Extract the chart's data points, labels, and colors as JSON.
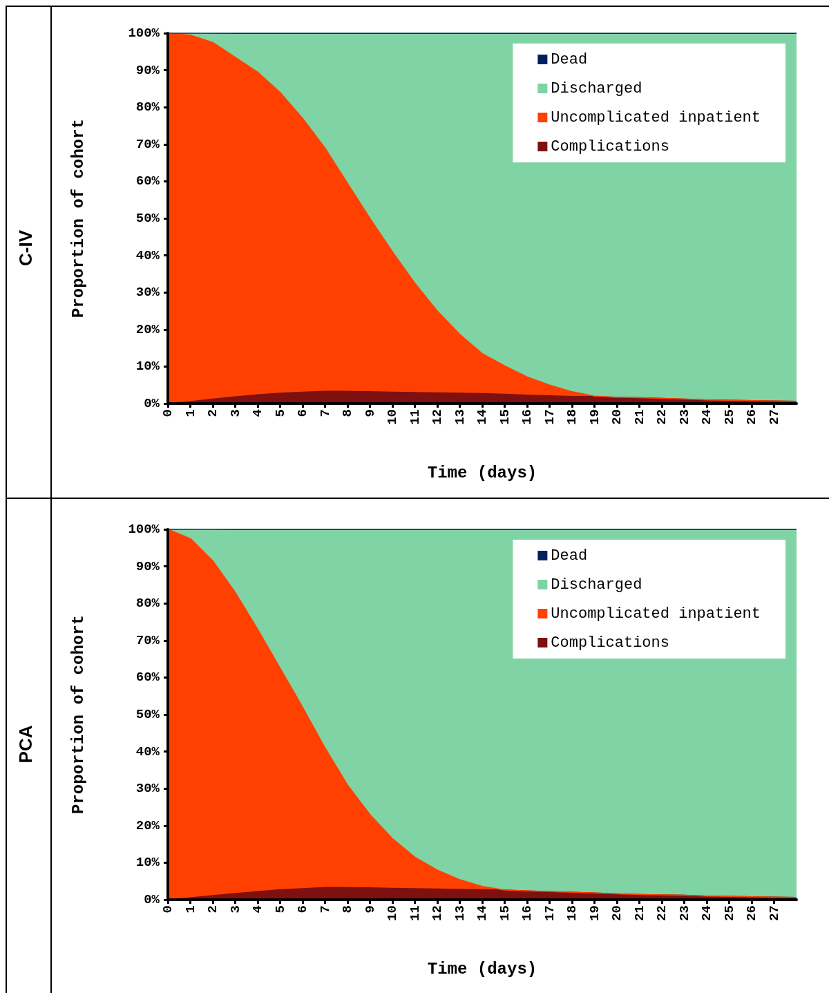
{
  "chart_data": [
    {
      "type": "area",
      "title": "C-IV",
      "xlabel": "Time (days)",
      "ylabel": "Proportion of cohort",
      "stacked": true,
      "legend": "top right",
      "grid": false,
      "x": [
        0,
        1,
        2,
        3,
        4,
        5,
        6,
        7,
        8,
        9,
        10,
        11,
        12,
        13,
        14,
        15,
        16,
        17,
        18,
        19,
        20,
        21,
        22,
        23,
        24,
        25,
        26,
        27,
        28
      ],
      "xlim": [
        0,
        28
      ],
      "xticks": [
        0,
        1,
        2,
        3,
        4,
        5,
        6,
        7,
        8,
        9,
        10,
        11,
        12,
        13,
        14,
        15,
        16,
        17,
        18,
        19,
        20,
        21,
        22,
        23,
        24,
        25,
        26,
        27
      ],
      "ylim": [
        0,
        100
      ],
      "yticks": [
        {
          "value": 0,
          "label": "0%"
        },
        {
          "value": 10,
          "label": "10%"
        },
        {
          "value": 20,
          "label": "20%"
        },
        {
          "value": 30,
          "label": "30%"
        },
        {
          "value": 40,
          "label": "40%"
        },
        {
          "value": 50,
          "label": "50%"
        },
        {
          "value": 60,
          "label": "60%"
        },
        {
          "value": 70,
          "label": "70%"
        },
        {
          "value": 80,
          "label": "80%"
        },
        {
          "value": 90,
          "label": "90%"
        },
        {
          "value": 100,
          "label": "100%"
        }
      ],
      "series": [
        {
          "name": "Complications",
          "color": "#7f1010",
          "values": [
            0,
            0.5,
            1.2,
            1.8,
            2.4,
            2.8,
            3.1,
            3.3,
            3.3,
            3.2,
            3.1,
            3.0,
            2.9,
            2.8,
            2.7,
            2.5,
            2.3,
            2.1,
            1.9,
            1.9,
            1.7,
            1.6,
            1.4,
            1.2,
            1.0,
            0.9,
            0.8,
            0.7,
            0.6
          ]
        },
        {
          "name": "Uncomplicated inpatient",
          "color": "#ff4000",
          "values": [
            100,
            99,
            96.3,
            91.7,
            87.1,
            81.2,
            73.9,
            65.7,
            56.2,
            46.8,
            37.9,
            29.5,
            22.1,
            15.9,
            10.8,
            7.7,
            4.9,
            2.9,
            1.3,
            0.1,
            0,
            0,
            0,
            0,
            0,
            0,
            0,
            0,
            0
          ]
        },
        {
          "name": "Discharged",
          "color": "#7fd3a4",
          "values": [
            0,
            0.4,
            2.3,
            6.2,
            10.2,
            15.7,
            22.7,
            30.7,
            40.2,
            49.7,
            58.7,
            67.2,
            74.7,
            81,
            86.2,
            89.5,
            92.5,
            94.7,
            96.5,
            97.7,
            98,
            98.1,
            98.3,
            98.5,
            98.7,
            98.8,
            98.9,
            99,
            99.1
          ]
        },
        {
          "name": "Dead",
          "color": "#002060",
          "values": [
            0,
            0.1,
            0.2,
            0.3,
            0.3,
            0.3,
            0.3,
            0.3,
            0.3,
            0.3,
            0.3,
            0.3,
            0.3,
            0.3,
            0.3,
            0.3,
            0.3,
            0.3,
            0.3,
            0.3,
            0.3,
            0.3,
            0.3,
            0.3,
            0.3,
            0.3,
            0.3,
            0.3,
            0.3
          ]
        }
      ]
    },
    {
      "type": "area",
      "title": "PCA",
      "xlabel": "Time (days)",
      "ylabel": "Proportion of cohort",
      "stacked": true,
      "legend": "top right",
      "grid": false,
      "x": [
        0,
        1,
        2,
        3,
        4,
        5,
        6,
        7,
        8,
        9,
        10,
        11,
        12,
        13,
        14,
        15,
        16,
        17,
        18,
        19,
        20,
        21,
        22,
        23,
        24,
        25,
        26,
        27,
        28
      ],
      "xlim": [
        0,
        28
      ],
      "xticks": [
        0,
        1,
        2,
        3,
        4,
        5,
        6,
        7,
        8,
        9,
        10,
        11,
        12,
        13,
        14,
        15,
        16,
        17,
        18,
        19,
        20,
        21,
        22,
        23,
        24,
        25,
        26,
        27
      ],
      "ylim": [
        0,
        100
      ],
      "yticks": [
        {
          "value": 0,
          "label": "0%"
        },
        {
          "value": 10,
          "label": "10%"
        },
        {
          "value": 20,
          "label": "20%"
        },
        {
          "value": 30,
          "label": "30%"
        },
        {
          "value": 40,
          "label": "40%"
        },
        {
          "value": 50,
          "label": "50%"
        },
        {
          "value": 60,
          "label": "60%"
        },
        {
          "value": 70,
          "label": "70%"
        },
        {
          "value": 80,
          "label": "80%"
        },
        {
          "value": 90,
          "label": "90%"
        },
        {
          "value": 100,
          "label": "100%"
        }
      ],
      "series": [
        {
          "name": "Complications",
          "color": "#7f1010",
          "values": [
            0,
            0.5,
            1.1,
            1.7,
            2.2,
            2.7,
            3.0,
            3.3,
            3.3,
            3.2,
            3.1,
            3.0,
            2.9,
            2.8,
            2.7,
            2.6,
            2.4,
            2.2,
            2.0,
            1.8,
            1.6,
            1.4,
            1.3,
            1.2,
            1.0,
            0.9,
            0.8,
            0.7,
            0.6
          ]
        },
        {
          "name": "Uncomplicated inpatient",
          "color": "#ff4000",
          "values": [
            100,
            97,
            90.4,
            81.3,
            70.8,
            59.8,
            49,
            37.7,
            27.7,
            19.8,
            13.4,
            8.5,
            5.1,
            2.6,
            0.9,
            0,
            0,
            0,
            0,
            0,
            0,
            0,
            0,
            0,
            0,
            0,
            0,
            0,
            0
          ]
        },
        {
          "name": "Discharged",
          "color": "#7fd3a4",
          "values": [
            0,
            2.4,
            8.3,
            16.7,
            26.7,
            37.2,
            47.7,
            58.7,
            68.7,
            76.7,
            83.2,
            88.2,
            91.7,
            94.3,
            96.1,
            97.1,
            97.3,
            97.5,
            97.7,
            97.9,
            98.1,
            98.3,
            98.4,
            98.5,
            98.7,
            98.8,
            98.9,
            99,
            99.1
          ]
        },
        {
          "name": "Dead",
          "color": "#002060",
          "values": [
            0,
            0.1,
            0.2,
            0.3,
            0.3,
            0.3,
            0.3,
            0.3,
            0.3,
            0.3,
            0.3,
            0.3,
            0.3,
            0.3,
            0.3,
            0.3,
            0.3,
            0.3,
            0.3,
            0.3,
            0.3,
            0.3,
            0.3,
            0.3,
            0.3,
            0.3,
            0.3,
            0.3,
            0.3
          ]
        }
      ]
    }
  ]
}
